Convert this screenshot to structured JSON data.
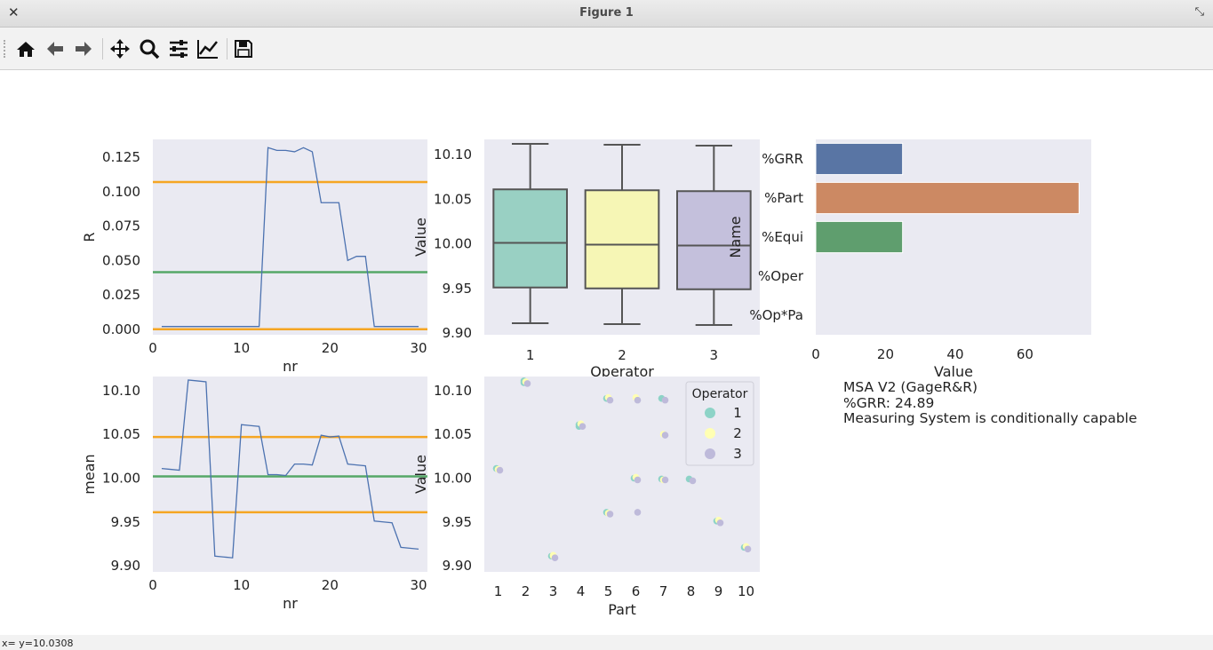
{
  "window": {
    "title": "Figure 1"
  },
  "toolbar": {
    "buttons": [
      "home-icon",
      "back-icon",
      "forward-icon",
      "pan-icon",
      "zoom-icon",
      "configure-icon",
      "edit-axis-icon",
      "save-icon"
    ]
  },
  "status": {
    "text": "x= y=10.0308"
  },
  "info": {
    "line1": "MSA V2 (GageR&R)",
    "line2": "%GRR: 24.89",
    "line3": "Measuring System is conditionally capable"
  },
  "colors": {
    "axes_bg": "#eaeaf2",
    "limit": "#f5a623",
    "center": "#55a868",
    "line": "#4c72b0"
  },
  "chart_data": [
    {
      "type": "line",
      "ylabel": "R",
      "xlabel": "nr",
      "xlim": [
        0,
        31
      ],
      "ylim": [
        -0.004,
        0.138
      ],
      "xticks": [
        0,
        10,
        20,
        30
      ],
      "yticks": [
        "0.000",
        "0.025",
        "0.050",
        "0.075",
        "0.100",
        "0.125"
      ],
      "x": [
        1,
        2,
        3,
        4,
        5,
        6,
        7,
        8,
        9,
        10,
        11,
        12,
        13,
        14,
        15,
        16,
        17,
        18,
        19,
        20,
        21,
        22,
        23,
        24,
        25,
        26,
        27,
        28,
        29,
        30
      ],
      "values": [
        0.002,
        0.002,
        0.002,
        0.002,
        0.002,
        0.002,
        0.002,
        0.002,
        0.002,
        0.002,
        0.002,
        0.002,
        0.132,
        0.13,
        0.13,
        0.129,
        0.132,
        0.129,
        0.092,
        0.092,
        0.092,
        0.05,
        0.053,
        0.053,
        0.002,
        0.002,
        0.002,
        0.002,
        0.002,
        0.002
      ],
      "hlines": [
        {
          "y": 0.107,
          "role": "UCL"
        },
        {
          "y": 0.0415,
          "role": "center"
        },
        {
          "y": 0.0,
          "role": "LCL"
        }
      ]
    },
    {
      "type": "line",
      "ylabel": "mean",
      "xlabel": "nr",
      "xlim": [
        0,
        31
      ],
      "ylim": [
        9.893,
        10.116
      ],
      "xticks": [
        0,
        10,
        20,
        30
      ],
      "yticks": [
        "9.90",
        "9.95",
        "10.00",
        "10.05",
        "10.10"
      ],
      "x": [
        1,
        2,
        3,
        4,
        5,
        6,
        7,
        8,
        9,
        10,
        11,
        12,
        13,
        14,
        15,
        16,
        17,
        18,
        19,
        20,
        21,
        22,
        23,
        24,
        25,
        26,
        27,
        28,
        29,
        30
      ],
      "values": [
        10.011,
        10.01,
        10.009,
        10.112,
        10.111,
        10.11,
        9.911,
        9.91,
        9.909,
        10.061,
        10.06,
        10.059,
        10.004,
        10.004,
        10.003,
        10.016,
        10.016,
        10.015,
        10.049,
        10.047,
        10.048,
        10.016,
        10.015,
        10.014,
        9.951,
        9.95,
        9.949,
        9.921,
        9.92,
        9.919
      ],
      "hlines": [
        {
          "y": 10.047,
          "role": "UCL"
        },
        {
          "y": 10.002,
          "role": "center"
        },
        {
          "y": 9.961,
          "role": "LCL"
        }
      ]
    },
    {
      "type": "box",
      "ylabel": "Value",
      "xlabel": "Operator",
      "ylim": [
        9.898,
        10.117
      ],
      "yticks": [
        "9.90",
        "9.95",
        "10.00",
        "10.05",
        "10.10"
      ],
      "categories": [
        "1",
        "2",
        "3"
      ],
      "boxes": [
        {
          "min": 9.911,
          "q1": 9.951,
          "median": 10.001,
          "q3": 10.061,
          "max": 10.112,
          "color": "#99d0c3"
        },
        {
          "min": 9.91,
          "q1": 9.95,
          "median": 9.999,
          "q3": 10.06,
          "max": 10.111,
          "color": "#f6f6b5"
        },
        {
          "min": 9.909,
          "q1": 9.949,
          "median": 9.998,
          "q3": 10.059,
          "max": 10.11,
          "color": "#c4c0dc"
        }
      ]
    },
    {
      "type": "scatter",
      "ylabel": "Value",
      "xlabel": "Part",
      "ylim": [
        9.893,
        10.116
      ],
      "yticks": [
        "9.90",
        "9.95",
        "10.00",
        "10.05",
        "10.10"
      ],
      "categories": [
        "1",
        "2",
        "3",
        "4",
        "5",
        "6",
        "7",
        "8",
        "9",
        "10"
      ],
      "legend": {
        "title": "Operator",
        "entries": [
          "1",
          "2",
          "3"
        ],
        "position": "upper-right"
      },
      "series": [
        {
          "name": "1",
          "color": "#8dd3c7",
          "points": [
            [
              1,
              10.011
            ],
            [
              2,
              10.111
            ],
            [
              3,
              9.911
            ],
            [
              4,
              10.061
            ],
            [
              5,
              10.091
            ],
            [
              5,
              9.961
            ],
            [
              6,
              10.0
            ],
            [
              7,
              9.999
            ],
            [
              7,
              10.091
            ],
            [
              8,
              9.999
            ],
            [
              9,
              9.951
            ],
            [
              10,
              9.921
            ],
            [
              2,
              10.109
            ],
            [
              4,
              10.059
            ]
          ]
        },
        {
          "name": "2",
          "color": "#ffffb3",
          "points": [
            [
              1,
              10.01
            ],
            [
              2,
              10.11
            ],
            [
              3,
              9.912
            ],
            [
              4,
              10.062
            ],
            [
              5,
              9.96
            ],
            [
              6,
              10.092
            ],
            [
              7,
              10.05
            ],
            [
              8,
              10.049
            ],
            [
              9,
              9.952
            ],
            [
              10,
              9.922
            ],
            [
              6,
              10.001
            ],
            [
              7,
              9.998
            ],
            [
              5,
              10.092
            ],
            [
              3,
              9.911
            ]
          ]
        },
        {
          "name": "3",
          "color": "#bebada",
          "points": [
            [
              1,
              10.009
            ],
            [
              2,
              10.108
            ],
            [
              3,
              9.909
            ],
            [
              4,
              10.059
            ],
            [
              5,
              9.959
            ],
            [
              5,
              10.089
            ],
            [
              6,
              10.089
            ],
            [
              6,
              9.998
            ],
            [
              6,
              9.961
            ],
            [
              7,
              10.089
            ],
            [
              7,
              10.049
            ],
            [
              8,
              9.997
            ],
            [
              9,
              9.949
            ],
            [
              10,
              9.919
            ],
            [
              7,
              9.998
            ]
          ]
        }
      ]
    },
    {
      "type": "bar",
      "orientation": "horizontal",
      "ylabel": "Name",
      "xlabel": "Value",
      "xlim": [
        0,
        79
      ],
      "xticks": [
        "0",
        "20",
        "40",
        "60"
      ],
      "categories": [
        "%GRR",
        "%Part",
        "%Equi",
        "%Oper",
        "%Op*Pa"
      ],
      "values": [
        24.89,
        75.5,
        24.89,
        0,
        0
      ],
      "bar_colors": [
        "#5975a4",
        "#cc8963",
        "#5f9e6e",
        "#b55d60",
        "#857aab"
      ]
    }
  ]
}
